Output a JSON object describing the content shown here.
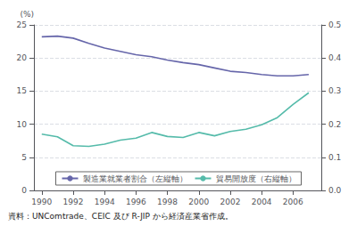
{
  "chart_data": {
    "type": "line",
    "x": [
      1990,
      1991,
      1992,
      1993,
      1994,
      1995,
      1996,
      1997,
      1998,
      1999,
      2000,
      2001,
      2002,
      2003,
      2004,
      2005,
      2006,
      2007
    ],
    "series": [
      {
        "name": "製造業就業者割合（左縦軸）",
        "color": "#6666aa",
        "values": [
          23.2,
          23.3,
          23.0,
          22.2,
          21.5,
          21.0,
          20.5,
          20.2,
          19.7,
          19.3,
          19.0,
          18.5,
          18.0,
          17.8,
          17.5,
          17.3,
          17.3,
          17.5
        ]
      },
      {
        "name": "貿易開放度（右縦軸）",
        "color": "#55bbaa",
        "axis": "y2",
        "values": [
          0.17,
          0.162,
          0.135,
          0.133,
          0.14,
          0.152,
          0.158,
          0.175,
          0.163,
          0.16,
          0.175,
          0.165,
          0.178,
          0.185,
          0.198,
          0.22,
          0.26,
          0.295
        ]
      }
    ],
    "xlim": [
      1989.5,
      2007.8
    ],
    "xticks": [
      1990,
      1992,
      1994,
      1996,
      1998,
      2000,
      2002,
      2004,
      2006
    ],
    "ylim": [
      0,
      25
    ],
    "yticks": [
      0,
      5,
      10,
      15,
      20,
      25
    ],
    "y2lim": [
      0,
      0.5
    ],
    "y2ticks": [
      {
        "value": 0,
        "label": "0.0"
      },
      0.1,
      0.2,
      0.3,
      0.4,
      0.5
    ],
    "ylabel": "(%)",
    "caption": "資料：UNComtrade、CEIC 及び R-JIP から経済産業省作成。",
    "grid": true,
    "legend": "bottom"
  }
}
